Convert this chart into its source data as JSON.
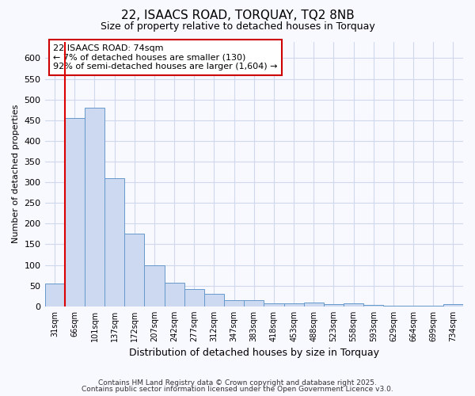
{
  "title_line1": "22, ISAACS ROAD, TORQUAY, TQ2 8NB",
  "title_line2": "Size of property relative to detached houses in Torquay",
  "xlabel": "Distribution of detached houses by size in Torquay",
  "ylabel": "Number of detached properties",
  "annotation_title": "22 ISAACS ROAD: 74sqm",
  "annotation_line1": "← 7% of detached houses are smaller (130)",
  "annotation_line2": "92% of semi-detached houses are larger (1,604) →",
  "footer_line1": "Contains HM Land Registry data © Crown copyright and database right 2025.",
  "footer_line2": "Contains public sector information licensed under the Open Government Licence v3.0.",
  "bin_labels": [
    "31sqm",
    "66sqm",
    "101sqm",
    "137sqm",
    "172sqm",
    "207sqm",
    "242sqm",
    "277sqm",
    "312sqm",
    "347sqm",
    "383sqm",
    "418sqm",
    "453sqm",
    "488sqm",
    "523sqm",
    "558sqm",
    "593sqm",
    "629sqm",
    "664sqm",
    "699sqm",
    "734sqm"
  ],
  "bar_heights": [
    55,
    455,
    480,
    310,
    175,
    100,
    58,
    42,
    30,
    15,
    15,
    8,
    8,
    10,
    5,
    8,
    3,
    2,
    2,
    2,
    5
  ],
  "bar_color": "#ccd9f0",
  "bar_edge_color": "#6699cc",
  "red_line_bar_index": 1,
  "red_line_color": "#dd0000",
  "bg_color": "#f8f8ff",
  "grid_color": "#d0d8ee",
  "ylim": [
    0,
    640
  ],
  "yticks": [
    0,
    50,
    100,
    150,
    200,
    250,
    300,
    350,
    400,
    450,
    500,
    550,
    600
  ],
  "annotation_box_color": "#ffffff",
  "annotation_border_color": "#cc0000"
}
